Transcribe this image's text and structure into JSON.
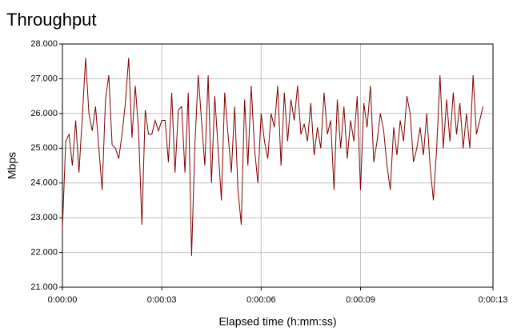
{
  "chart_data": {
    "type": "line",
    "title": "Throughput",
    "y_label": "Mbps",
    "x_label": "Elapsed time (h:mm:ss)",
    "x": [
      0,
      0.1,
      0.2,
      0.3,
      0.4,
      0.5,
      0.6,
      0.7,
      0.8,
      0.9,
      1,
      1.1,
      1.2,
      1.3,
      1.4,
      1.5,
      1.6,
      1.7,
      1.8,
      1.9,
      2,
      2.1,
      2.2,
      2.3,
      2.4,
      2.5,
      2.6,
      2.7,
      2.8,
      2.9,
      3,
      3.1,
      3.2,
      3.3,
      3.4,
      3.5,
      3.6,
      3.7,
      3.8,
      3.9,
      4,
      4.1,
      4.2,
      4.3,
      4.4,
      4.5,
      4.6,
      4.7,
      4.8,
      4.9,
      5,
      5.1,
      5.2,
      5.3,
      5.4,
      5.5,
      5.6,
      5.7,
      5.8,
      5.9,
      6,
      6.1,
      6.2,
      6.3,
      6.4,
      6.5,
      6.6,
      6.7,
      6.8,
      6.9,
      7,
      7.1,
      7.2,
      7.3,
      7.4,
      7.5,
      7.6,
      7.7,
      7.8,
      7.9,
      8,
      8.1,
      8.2,
      8.3,
      8.4,
      8.5,
      8.6,
      8.7,
      8.8,
      8.9,
      9,
      9.1,
      9.2,
      9.3,
      9.4,
      9.5,
      9.6,
      9.7,
      9.8,
      9.9,
      10,
      10.1,
      10.2,
      10.3,
      10.4,
      10.5,
      10.6,
      10.7,
      10.8,
      10.9,
      11,
      11.1,
      11.2,
      11.3,
      11.4,
      11.5,
      11.6,
      11.7,
      11.8,
      11.9,
      12,
      12.1,
      12.2,
      12.3,
      12.4,
      12.5,
      12.6,
      12.7
    ],
    "series": [
      {
        "name": "Throughput",
        "color": "#800000",
        "values": [
          22.7,
          25.2,
          25.4,
          24.5,
          25.8,
          24.3,
          25.9,
          27.6,
          26.0,
          25.5,
          26.2,
          25.0,
          23.8,
          26.4,
          27.1,
          25.1,
          25.0,
          24.7,
          25.4,
          26.3,
          27.6,
          25.3,
          26.8,
          25.5,
          22.8,
          26.1,
          25.4,
          25.4,
          25.8,
          25.5,
          25.8,
          25.8,
          24.6,
          26.6,
          24.3,
          26.1,
          26.2,
          24.3,
          26.6,
          21.9,
          25.1,
          27.1,
          25.8,
          24.5,
          27.1,
          24.0,
          26.5,
          25.0,
          23.5,
          26.6,
          25.4,
          24.3,
          26.2,
          23.8,
          22.8,
          26.4,
          24.5,
          26.8,
          25.0,
          24.0,
          26.0,
          25.2,
          24.7,
          26.0,
          25.6,
          26.8,
          24.5,
          26.6,
          25.2,
          26.4,
          25.8,
          26.8,
          25.4,
          25.7,
          25.2,
          26.3,
          24.8,
          25.6,
          25.0,
          26.6,
          25.4,
          25.8,
          23.8,
          26.4,
          25.0,
          26.2,
          24.7,
          25.8,
          25.2,
          26.5,
          23.8,
          26.3,
          25.6,
          26.8,
          24.6,
          25.2,
          26.0,
          25.5,
          24.5,
          23.8,
          25.6,
          24.8,
          25.8,
          25.2,
          26.5,
          26.0,
          24.6,
          25.0,
          25.6,
          24.8,
          26.0,
          24.5,
          23.5,
          25.0,
          27.1,
          25.0,
          26.4,
          25.2,
          26.6,
          25.4,
          26.3,
          25.0,
          26.0,
          25.0,
          27.1,
          25.4,
          25.8,
          26.2
        ]
      }
    ],
    "xlim": [
      0,
      13
    ],
    "xticks": [
      {
        "value": 0,
        "label": "0:00:00"
      },
      {
        "value": 3,
        "label": "0:00:03"
      },
      {
        "value": 6,
        "label": "0:00:06"
      },
      {
        "value": 9,
        "label": "0:00:09"
      },
      {
        "value": 13,
        "label": "0:00:13"
      }
    ],
    "ylim": [
      21,
      28
    ],
    "yticks": [
      {
        "value": 21,
        "label": "21.000"
      },
      {
        "value": 22,
        "label": "22.000"
      },
      {
        "value": 23,
        "label": "23.000"
      },
      {
        "value": 24,
        "label": "24.000"
      },
      {
        "value": 25,
        "label": "25.000"
      },
      {
        "value": 26,
        "label": "26.000"
      },
      {
        "value": 27,
        "label": "27.000"
      },
      {
        "value": 28,
        "label": "28.000"
      }
    ],
    "grid": true
  }
}
